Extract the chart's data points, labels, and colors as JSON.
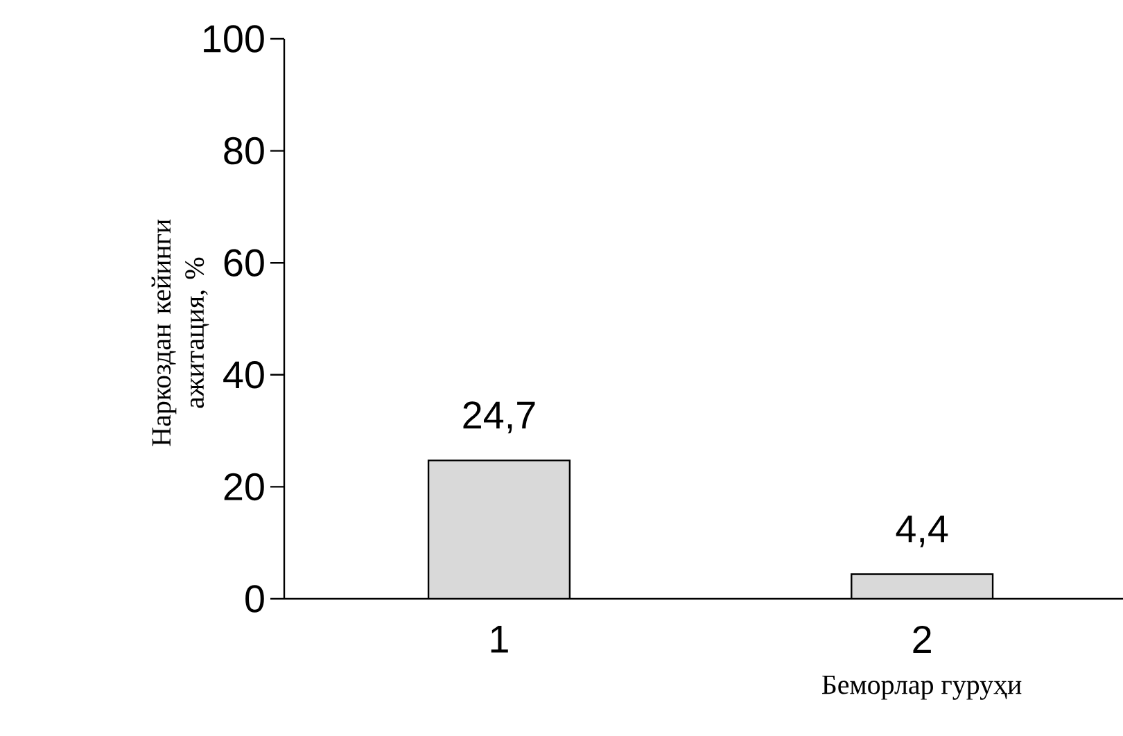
{
  "chart_data": {
    "type": "bar",
    "categories": [
      "1",
      "2"
    ],
    "values": [
      24.7,
      4.4
    ],
    "value_labels": [
      "24,7",
      "4,4"
    ],
    "color": "#d9d9d9",
    "ylim": [
      0,
      100
    ],
    "yticks": [
      0,
      20,
      40,
      60,
      80,
      100
    ],
    "xlabel": "Беморлар гуруҳи",
    "ylabel": "Наркоздан кейинги ажитация, %"
  }
}
